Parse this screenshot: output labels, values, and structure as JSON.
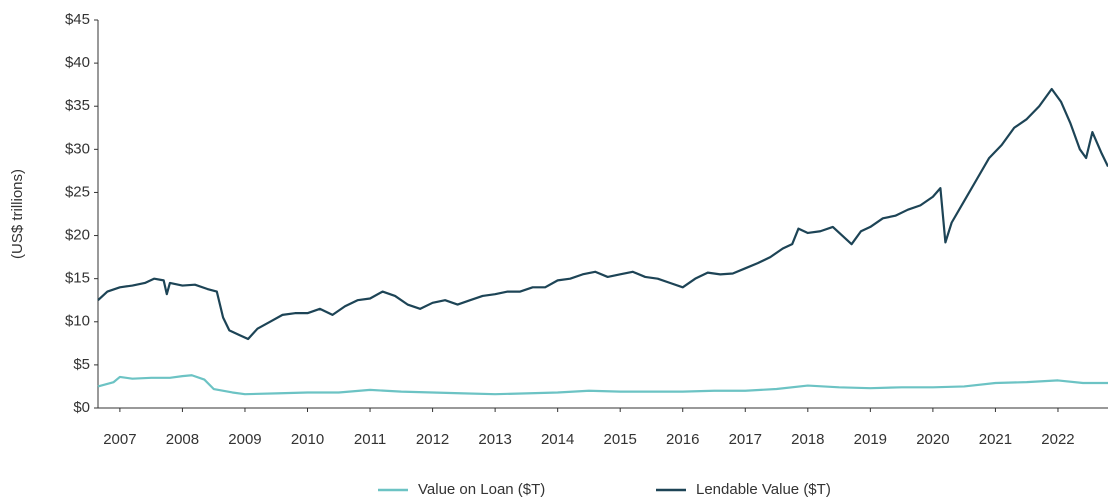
{
  "chart_data": {
    "type": "line",
    "y_label": "(US$ trillions)",
    "xlim": [
      2006.65,
      2022.8
    ],
    "xticks": [
      2007,
      2008,
      2009,
      2010,
      2011,
      2012,
      2013,
      2014,
      2015,
      2016,
      2017,
      2018,
      2019,
      2020,
      2021,
      2022
    ],
    "ylim": [
      0,
      45
    ],
    "yticks": [
      {
        "value": 0,
        "label": "$0"
      },
      {
        "value": 5,
        "label": "$5"
      },
      {
        "value": 10,
        "label": "$10"
      },
      {
        "value": 15,
        "label": "$15"
      },
      {
        "value": 20,
        "label": "$20"
      },
      {
        "value": 25,
        "label": "$25"
      },
      {
        "value": 30,
        "label": "$30"
      },
      {
        "value": 35,
        "label": "$35"
      },
      {
        "value": 40,
        "label": "$40"
      },
      {
        "value": 45,
        "label": "$45"
      }
    ],
    "grid": false,
    "legend": "bottom",
    "series": [
      {
        "name": "Value on Loan ($T)",
        "color": "#6cc3c4",
        "x": [
          2006.65,
          2006.9,
          2007.0,
          2007.2,
          2007.5,
          2007.8,
          2008.0,
          2008.15,
          2008.35,
          2008.5,
          2008.8,
          2009.0,
          2009.5,
          2010.0,
          2010.5,
          2011.0,
          2011.5,
          2012.0,
          2012.5,
          2013.0,
          2013.5,
          2014.0,
          2014.5,
          2015.0,
          2015.5,
          2016.0,
          2016.5,
          2017.0,
          2017.5,
          2018.0,
          2018.5,
          2019.0,
          2019.5,
          2020.0,
          2020.5,
          2021.0,
          2021.5,
          2022.0,
          2022.4,
          2022.8
        ],
        "values": [
          2.5,
          3,
          3.6,
          3.4,
          3.5,
          3.5,
          3.7,
          3.8,
          3.3,
          2.2,
          1.8,
          1.6,
          1.7,
          1.8,
          1.8,
          2.1,
          1.9,
          1.8,
          1.7,
          1.6,
          1.7,
          1.8,
          2.0,
          1.9,
          1.9,
          1.9,
          2.0,
          2.0,
          2.2,
          2.6,
          2.4,
          2.3,
          2.4,
          2.4,
          2.5,
          2.9,
          3.0,
          3.2,
          2.9,
          2.9
        ]
      },
      {
        "name": "Lendable Value ($T)",
        "color": "#1d4456",
        "x": [
          2006.65,
          2006.8,
          2007.0,
          2007.2,
          2007.4,
          2007.55,
          2007.7,
          2007.75,
          2007.8,
          2008.0,
          2008.2,
          2008.4,
          2008.55,
          2008.65,
          2008.75,
          2008.9,
          2009.05,
          2009.2,
          2009.4,
          2009.6,
          2009.8,
          2010.0,
          2010.2,
          2010.4,
          2010.6,
          2010.8,
          2011.0,
          2011.2,
          2011.4,
          2011.6,
          2011.8,
          2012.0,
          2012.2,
          2012.4,
          2012.6,
          2012.8,
          2013.0,
          2013.2,
          2013.4,
          2013.6,
          2013.8,
          2014.0,
          2014.2,
          2014.4,
          2014.6,
          2014.8,
          2015.0,
          2015.2,
          2015.4,
          2015.6,
          2015.8,
          2016.0,
          2016.2,
          2016.4,
          2016.6,
          2016.8,
          2017.0,
          2017.2,
          2017.4,
          2017.6,
          2017.75,
          2017.85,
          2018.0,
          2018.2,
          2018.4,
          2018.55,
          2018.7,
          2018.85,
          2019.0,
          2019.2,
          2019.4,
          2019.6,
          2019.8,
          2020.0,
          2020.12,
          2020.2,
          2020.3,
          2020.5,
          2020.7,
          2020.9,
          2021.1,
          2021.3,
          2021.5,
          2021.7,
          2021.9,
          2022.05,
          2022.2,
          2022.35,
          2022.45,
          2022.55,
          2022.7,
          2022.8
        ],
        "values": [
          12.5,
          13.5,
          14,
          14.2,
          14.5,
          15,
          14.8,
          13.2,
          14.5,
          14.2,
          14.3,
          13.8,
          13.5,
          10.5,
          9,
          8.5,
          8,
          9.2,
          10,
          10.8,
          11,
          11,
          11.5,
          10.8,
          11.8,
          12.5,
          12.7,
          13.5,
          13,
          12,
          11.5,
          12.2,
          12.5,
          12,
          12.5,
          13,
          13.2,
          13.5,
          13.5,
          14,
          14,
          14.8,
          15,
          15.5,
          15.8,
          15.2,
          15.5,
          15.8,
          15.2,
          15,
          14.5,
          14,
          15,
          15.7,
          15.5,
          15.6,
          16.2,
          16.8,
          17.5,
          18.5,
          19,
          20.8,
          20.3,
          20.5,
          21,
          20,
          19,
          20.5,
          21,
          22,
          22.3,
          23,
          23.5,
          24.5,
          25.5,
          19.2,
          21.5,
          24,
          26.5,
          29,
          30.5,
          32.5,
          33.5,
          35,
          37,
          35.5,
          33,
          30,
          29,
          32,
          29.5,
          28
        ]
      }
    ]
  }
}
